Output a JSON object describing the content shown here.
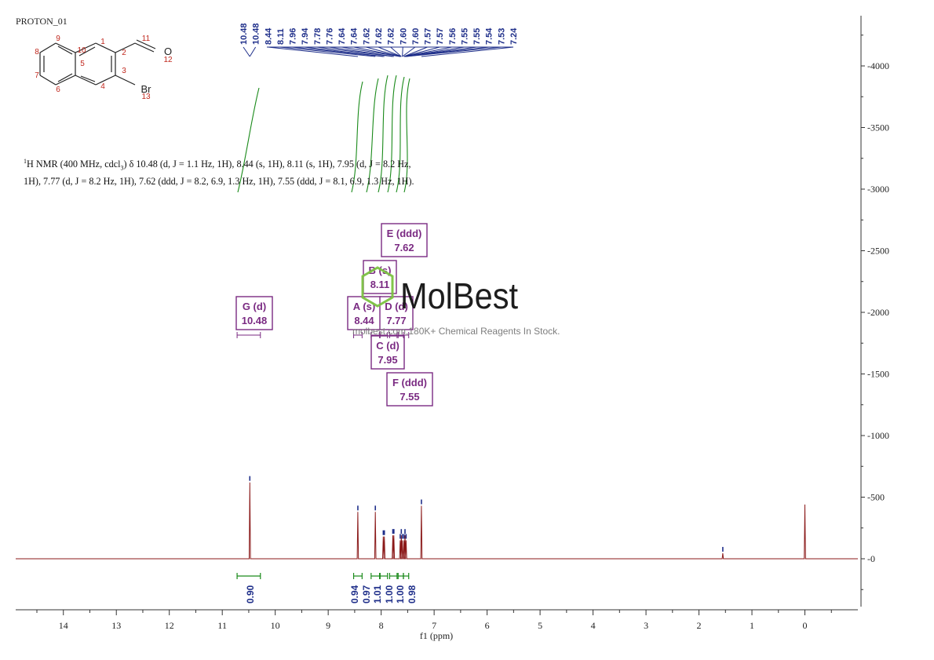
{
  "experiment": "PROTON_01",
  "axis": {
    "label": "f1 (ppm)",
    "ticks": [
      14,
      13,
      12,
      11,
      10,
      9,
      8,
      7,
      6,
      5,
      4,
      3,
      2,
      1,
      0
    ]
  },
  "intensity_axis": {
    "ticks": [
      0,
      500,
      1000,
      1500,
      2000,
      2500,
      3000,
      3500,
      4000
    ]
  },
  "summary": {
    "nucleus_sup": "1",
    "line1_pre": "H NMR (400 MHz, cdcl",
    "solvent_sub": "3",
    "line1_post": ") δ 10.48 (d, J = 1.1 Hz, 1H), 8.44 (s, 1H), 8.11 (s, 1H), 7.95 (d, J = 8.2 Hz,",
    "line2": "1H), 7.77 (d, J = 8.2 Hz, 1H), 7.62 (ddd, J = 8.2, 6.9, 1.3 Hz, 1H), 7.55 (ddd, J = 8.1, 6.9, 1.3 Hz, 1H)."
  },
  "peak_labels": [
    "10.48",
    "10.48",
    "8.44",
    "8.11",
    "7.96",
    "7.94",
    "7.78",
    "7.76",
    "7.64",
    "7.64",
    "7.62",
    "7.62",
    "7.62",
    "7.60",
    "7.60",
    "7.57",
    "7.57",
    "7.56",
    "7.55",
    "7.55",
    "7.54",
    "7.53",
    "7.24"
  ],
  "multiplets": [
    {
      "name": "G (d)",
      "shift": "10.48"
    },
    {
      "name": "A (s)",
      "shift": "8.44"
    },
    {
      "name": "B (s)",
      "shift": "8.11"
    },
    {
      "name": "C (d)",
      "shift": "7.95"
    },
    {
      "name": "D (d)",
      "shift": "7.77"
    },
    {
      "name": "E (ddd)",
      "shift": "7.62"
    },
    {
      "name": "F (ddd)",
      "shift": "7.55"
    }
  ],
  "integrals": [
    "0.90",
    "0.94",
    "0.97",
    "1.01",
    "1.00",
    "1.00",
    "0.98"
  ],
  "structure": {
    "atom_numbers": [
      "1",
      "2",
      "3",
      "4",
      "5",
      "6",
      "7",
      "8",
      "9",
      "10",
      "11",
      "12",
      "13"
    ],
    "oxygen": "O",
    "bromine": "Br"
  },
  "watermark": {
    "brand": "MolBest",
    "tagline": "molbest.com,180K+ Chemical Reagents In Stock."
  },
  "colors": {
    "spectrum": "#8b1a1a",
    "labels": "#1f2f8a",
    "integrals": "#1a8a1a",
    "multiplets": "#7a2a82",
    "watermark": "#7cc242"
  },
  "chart_data": {
    "type": "line",
    "xlabel": "f1 (ppm)",
    "xlim": [
      14.9,
      -1.0
    ],
    "ylim": [
      -420,
      4400
    ],
    "x_reversed": true,
    "peaks": [
      {
        "ppm": 10.48,
        "height": 620
      },
      {
        "ppm": 8.44,
        "height": 380
      },
      {
        "ppm": 8.11,
        "height": 380
      },
      {
        "ppm": 7.96,
        "height": 180
      },
      {
        "ppm": 7.94,
        "height": 180
      },
      {
        "ppm": 7.78,
        "height": 190
      },
      {
        "ppm": 7.76,
        "height": 190
      },
      {
        "ppm": 7.64,
        "height": 150
      },
      {
        "ppm": 7.62,
        "height": 190
      },
      {
        "ppm": 7.6,
        "height": 150
      },
      {
        "ppm": 7.57,
        "height": 150
      },
      {
        "ppm": 7.55,
        "height": 190
      },
      {
        "ppm": 7.53,
        "height": 150
      },
      {
        "ppm": 7.24,
        "height": 430
      },
      {
        "ppm": 1.55,
        "height": 45
      },
      {
        "ppm": 0.0,
        "height": 440
      }
    ],
    "multiplet_ranges": [
      {
        "label": "G (d)",
        "from": 10.72,
        "to": 10.28
      },
      {
        "label": "A (s)",
        "from": 8.52,
        "to": 8.36
      },
      {
        "label": "B (s)",
        "from": 8.19,
        "to": 8.03
      },
      {
        "label": "C (d)",
        "from": 8.02,
        "to": 7.88
      },
      {
        "label": "D (d)",
        "from": 7.84,
        "to": 7.7
      },
      {
        "label": "E (ddd)",
        "from": 7.68,
        "to": 7.58
      },
      {
        "label": "F (ddd)",
        "from": 7.58,
        "to": 7.48
      }
    ],
    "integral_ranges": [
      {
        "value": 0.9,
        "from": 10.72,
        "to": 10.28
      },
      {
        "value": 0.94,
        "from": 8.52,
        "to": 8.36
      },
      {
        "value": 0.97,
        "from": 8.19,
        "to": 8.03
      },
      {
        "value": 1.01,
        "from": 8.02,
        "to": 7.88
      },
      {
        "value": 1.0,
        "from": 7.84,
        "to": 7.7
      },
      {
        "value": 1.0,
        "from": 7.68,
        "to": 7.58
      },
      {
        "value": 0.98,
        "from": 7.58,
        "to": 7.48
      }
    ]
  }
}
